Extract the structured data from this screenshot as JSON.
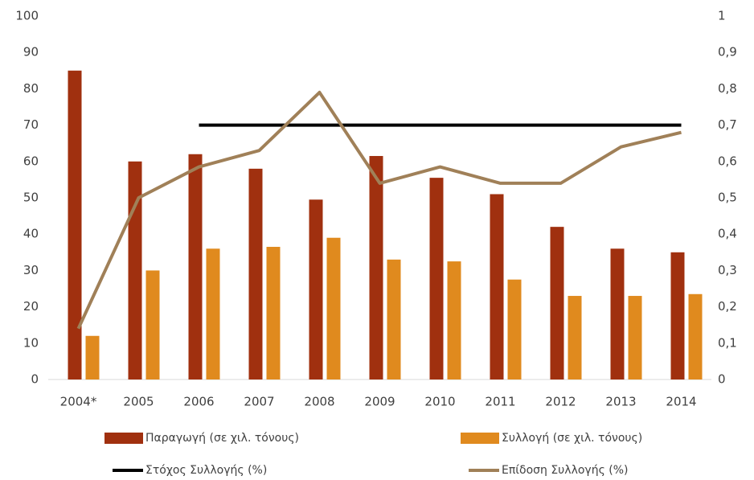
{
  "chart_data": {
    "type": "bar",
    "categories": [
      "2004*",
      "2005",
      "2006",
      "2007",
      "2008",
      "2009",
      "2010",
      "2011",
      "2012",
      "2013",
      "2014"
    ],
    "series": [
      {
        "name": "Παραγωγή (σε χιλ. τόνους)",
        "color": "#a0300f",
        "type": "bar",
        "values": [
          85,
          60,
          62,
          58,
          49.5,
          61.5,
          55.5,
          51,
          42,
          36,
          35
        ]
      },
      {
        "name": "Συλλογή (σε χιλ. τόνους)",
        "color": "#e08a1e",
        "type": "bar",
        "values": [
          12,
          30,
          36,
          36.5,
          39,
          33,
          32.5,
          27.5,
          23,
          23,
          23.5
        ]
      },
      {
        "name": "Στόχος Συλλογής (%)",
        "color": "#000000",
        "type": "line",
        "axis": "y2",
        "values": [
          null,
          null,
          0.7,
          0.7,
          0.7,
          0.7,
          0.7,
          0.7,
          0.7,
          0.7,
          0.7
        ]
      },
      {
        "name": "Επίδοση Συλλογής (%)",
        "color": "#a08058",
        "type": "line",
        "axis": "y2",
        "values": [
          0.14,
          0.5,
          0.585,
          0.63,
          0.79,
          0.54,
          0.585,
          0.54,
          0.54,
          0.64,
          0.68
        ]
      }
    ],
    "ylim": [
      0,
      100
    ],
    "yticks": [
      0,
      10,
      20,
      30,
      40,
      50,
      60,
      70,
      80,
      90,
      100
    ],
    "y2lim": [
      0,
      1
    ],
    "y2ticks": [
      0,
      {
        "value": 0.1,
        "label": "0,1"
      },
      {
        "value": 0.2,
        "label": "0,2"
      },
      {
        "value": 0.3,
        "label": "0,3"
      },
      {
        "value": 0.4,
        "label": "0,4"
      },
      {
        "value": 0.5,
        "label": "0,5"
      },
      {
        "value": 0.6,
        "label": "0,6"
      },
      {
        "value": 0.7,
        "label": "0,7"
      },
      {
        "value": 0.8,
        "label": "0,8"
      },
      {
        "value": 0.9,
        "label": "0,9"
      },
      1
    ],
    "legend": "bottom",
    "grid": false
  }
}
